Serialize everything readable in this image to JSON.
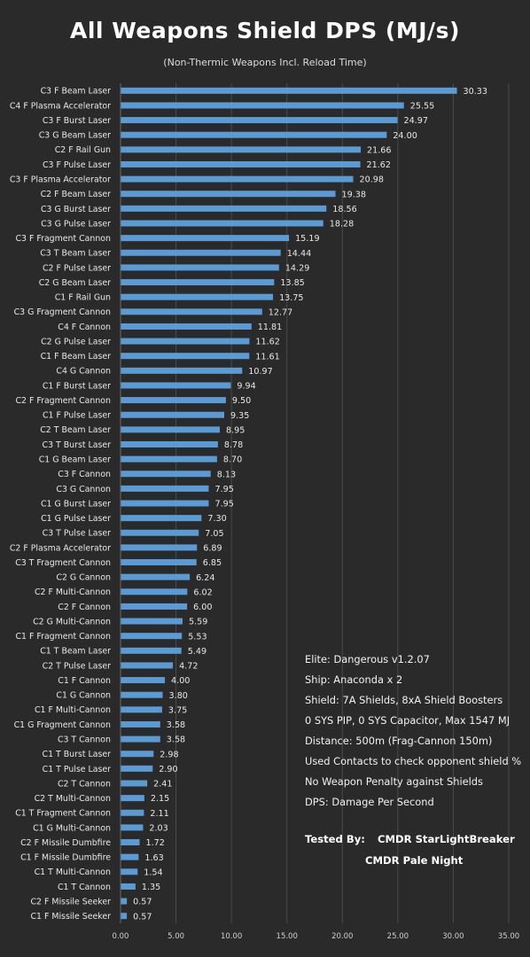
{
  "chart_data": {
    "type": "bar",
    "orientation": "horizontal",
    "title": "All Weapons Shield DPS (MJ/s)",
    "subtitle": "(Non-Thermic Weapons Incl. Reload Time)",
    "xlabel": "",
    "ylabel": "",
    "xlim": [
      0,
      35
    ],
    "xticks": [
      "0.00",
      "5.00",
      "10.00",
      "15.00",
      "20.00",
      "25.00",
      "30.00",
      "35.00"
    ],
    "grid": true,
    "bar_color": "#5b9bd5",
    "categories": [
      "C3 F Beam Laser",
      "C4 F Plasma Accelerator",
      "C3 F Burst Laser",
      "C3 G Beam Laser",
      "C2 F Rail Gun",
      "C3 F Pulse Laser",
      "C3 F Plasma Accelerator",
      "C2 F Beam Laser",
      "C3 G Burst Laser",
      "C3 G Pulse Laser",
      "C3 F Fragment Cannon",
      "C3 T Beam Laser",
      "C2 F Pulse Laser",
      "C2 G Beam Laser",
      "C1 F Rail Gun",
      "C3 G Fragment Cannon",
      "C4 F Cannon",
      "C2 G Pulse Laser",
      "C1 F Beam Laser",
      "C4 G Cannon",
      "C1 F Burst Laser",
      "C2 F Fragment Cannon",
      "C1 F Pulse Laser",
      "C2 T Beam Laser",
      "C3 T Burst Laser",
      "C1 G Beam Laser",
      "C3 F Cannon",
      "C3 G Cannon",
      "C1 G Burst Laser",
      "C1 G Pulse Laser",
      "C3 T Pulse Laser",
      "C2 F Plasma Accelerator",
      "C3 T Fragment Cannon",
      "C2 G Cannon",
      "C2 F Multi-Cannon",
      "C2 F Cannon",
      "C2 G Multi-Cannon",
      "C1 F Fragment Cannon",
      "C1 T Beam Laser",
      "C2 T Pulse Laser",
      "C1 F Cannon",
      "C1 G Cannon",
      "C1 F Multi-Cannon",
      "C1 G Fragment Cannon",
      "C3 T Cannon",
      "C1 T Burst Laser",
      "C1 T Pulse Laser",
      "C2 T Cannon",
      "C2 T Multi-Cannon",
      "C1 T Fragment Cannon",
      "C1 G Multi-Cannon",
      "C2 F Missile Dumbfire",
      "C1 F Missile Dumbfire",
      "C1 T Multi-Cannon",
      "C1 T Cannon",
      "C2 F Missile Seeker",
      "C1 F Missile Seeker"
    ],
    "values": [
      30.33,
      25.55,
      24.97,
      24.0,
      21.66,
      21.62,
      20.98,
      19.38,
      18.56,
      18.28,
      15.19,
      14.44,
      14.29,
      13.85,
      13.75,
      12.77,
      11.81,
      11.62,
      11.61,
      10.97,
      9.94,
      9.5,
      9.35,
      8.95,
      8.78,
      8.7,
      8.13,
      7.95,
      7.95,
      7.3,
      7.05,
      6.89,
      6.85,
      6.24,
      6.02,
      6.0,
      5.59,
      5.53,
      5.49,
      4.72,
      4.0,
      3.8,
      3.75,
      3.58,
      3.58,
      2.98,
      2.9,
      2.41,
      2.15,
      2.11,
      2.03,
      1.72,
      1.63,
      1.54,
      1.35,
      0.57,
      0.57
    ],
    "value_labels": [
      "30.33",
      "25.55",
      "24.97",
      "24.00",
      "21.66",
      "21.62",
      "20.98",
      "19.38",
      "18.56",
      "18.28",
      "15.19",
      "14.44",
      "14.29",
      "13.85",
      "13.75",
      "12.77",
      "11.81",
      "11.62",
      "11.61",
      "10.97",
      "9.94",
      "9.50",
      "9.35",
      "8.95",
      "8.78",
      "8.70",
      "8.13",
      "7.95",
      "7.95",
      "7.30",
      "7.05",
      "6.89",
      "6.85",
      "6.24",
      "6.02",
      "6.00",
      "5.59",
      "5.53",
      "5.49",
      "4.72",
      "4.00",
      "3.80",
      "3.75",
      "3.58",
      "3.58",
      "2.98",
      "2.90",
      "2.41",
      "2.15",
      "2.11",
      "2.03",
      "1.72",
      "1.63",
      "1.54",
      "1.35",
      "0.57",
      "0.57"
    ]
  },
  "notes": {
    "lines": [
      "Elite: Dangerous v1.2.07",
      "Ship: Anaconda x 2",
      "Shield: 7A Shields, 8xA Shield Boosters",
      "0 SYS PIP, 0 SYS Capacitor, Max 1547 MJ",
      "Distance: 500m (Frag-Cannon 150m)",
      "Used Contacts to check opponent shield %",
      "No Weapon Penalty against Shields",
      "DPS: Damage Per Second"
    ]
  },
  "credits": {
    "label": "Tested By:",
    "names": [
      "CMDR StarLightBreaker",
      "CMDR Pale Night"
    ]
  }
}
